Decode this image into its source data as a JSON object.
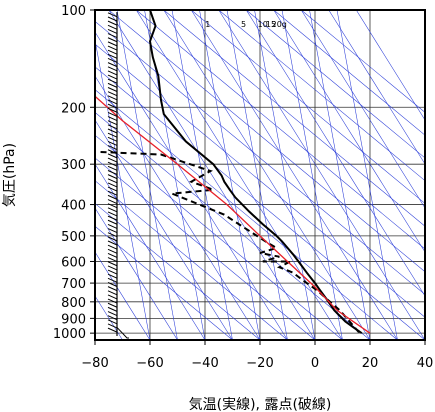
{
  "chart_data": {
    "type": "line",
    "subtype": "skew-T log-p emagram",
    "xlabel": "気温(実線), 露点(破線)",
    "ylabel": "気圧(hPa)",
    "x_ticks": [
      -80,
      -60,
      -40,
      -20,
      0,
      20,
      40
    ],
    "y_ticks": [
      100,
      200,
      300,
      400,
      500,
      600,
      700,
      800,
      900,
      1000
    ],
    "xlim": [
      -80,
      40
    ],
    "ylim": [
      1050,
      100
    ],
    "y_scale": "log",
    "grid": true,
    "mixing_ratio_labels": [
      "1",
      "5",
      "10",
      "15",
      "20g"
    ],
    "colors": {
      "temperature": "#000000",
      "dewpoint": "#000000",
      "parcel": "#e8202a",
      "adiabats": "#2a3cd8",
      "isotherms": "#2a3cd8",
      "grid": "#333333"
    },
    "series": [
      {
        "name": "",
        "style": "solid",
        "color": "#000000",
        "points": [
          [
            17,
            1000
          ],
          [
            14,
            960
          ],
          [
            11,
            920
          ],
          [
            7,
            850
          ],
          [
            4,
            780
          ],
          [
            2,
            740
          ],
          [
            0,
            700
          ],
          [
            -3,
            650
          ],
          [
            -6,
            600
          ],
          [
            -8,
            570
          ],
          [
            -12,
            520
          ],
          [
            -14,
            500
          ],
          [
            -19,
            460
          ],
          [
            -24,
            420
          ],
          [
            -29,
            380
          ],
          [
            -31,
            360
          ],
          [
            -33,
            340
          ],
          [
            -34,
            325
          ],
          [
            -37,
            300
          ],
          [
            -47,
            255
          ],
          [
            -55,
            210
          ],
          [
            -56,
            190
          ],
          [
            -57,
            160
          ],
          [
            -59,
            140
          ],
          [
            -60,
            125
          ],
          [
            -58,
            112
          ],
          [
            -60,
            100
          ]
        ]
      },
      {
        "name": "",
        "style": "dashed",
        "color": "#000000",
        "points": [
          [
            16,
            995
          ],
          [
            14,
            950
          ],
          [
            9,
            850
          ],
          [
            4,
            780
          ],
          [
            1,
            740
          ],
          [
            -4,
            690
          ],
          [
            -8,
            650
          ],
          [
            -13,
            625
          ],
          [
            -9,
            600
          ],
          [
            -19,
            600
          ],
          [
            -13,
            580
          ],
          [
            -20,
            565
          ],
          [
            -14,
            545
          ],
          [
            -18,
            520
          ],
          [
            -26,
            470
          ],
          [
            -33,
            430
          ],
          [
            -42,
            400
          ],
          [
            -52,
            370
          ],
          [
            -37,
            360
          ],
          [
            -45,
            340
          ],
          [
            -38,
            315
          ],
          [
            -56,
            280
          ],
          [
            -78,
            275
          ]
        ]
      },
      {
        "name": "",
        "style": "solid",
        "color": "#e8202a",
        "points": [
          [
            20,
            1000
          ],
          [
            8,
            850
          ],
          [
            0,
            720
          ],
          [
            -10,
            600
          ],
          [
            -20,
            500
          ],
          [
            -32,
            400
          ],
          [
            -50,
            300
          ],
          [
            -70,
            220
          ],
          [
            -92,
            150
          ]
        ]
      }
    ]
  }
}
